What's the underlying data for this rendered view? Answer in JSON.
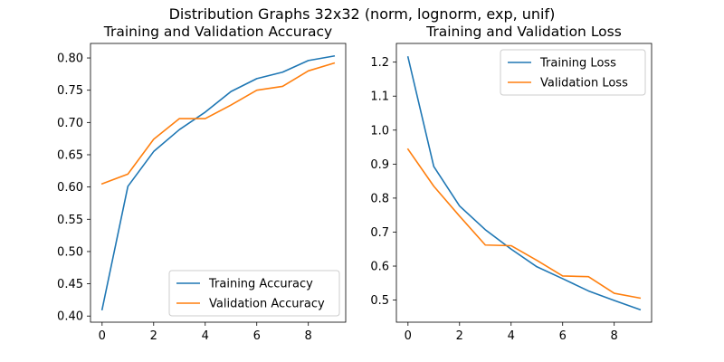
{
  "suptitle": "Distribution Graphs 32x32 (norm, lognorm, exp, unif)",
  "colors": {
    "training": "#1f77b4",
    "validation": "#ff7f0e"
  },
  "chart_data": [
    {
      "type": "line",
      "title": "Training and Validation Accuracy",
      "xlabel": "",
      "ylabel": "",
      "x": [
        0,
        1,
        2,
        3,
        4,
        5,
        6,
        7,
        8,
        9
      ],
      "xlim": [
        -0.45,
        9.45
      ],
      "ylim": [
        0.3905,
        0.8225
      ],
      "xticks": [
        0,
        2,
        4,
        6,
        8
      ],
      "yticks": [
        0.4,
        0.45,
        0.5,
        0.55,
        0.6,
        0.65,
        0.7,
        0.75,
        0.8
      ],
      "ytick_labels": [
        "0.40",
        "0.45",
        "0.50",
        "0.55",
        "0.60",
        "0.65",
        "0.70",
        "0.75",
        "0.80"
      ],
      "legend_position": "lower-right",
      "series": [
        {
          "name": "Training Accuracy",
          "color": "#1f77b4",
          "values": [
            0.41,
            0.601,
            0.655,
            0.689,
            0.716,
            0.748,
            0.768,
            0.778,
            0.796,
            0.803
          ]
        },
        {
          "name": "Validation Accuracy",
          "color": "#ff7f0e",
          "values": [
            0.605,
            0.62,
            0.674,
            0.706,
            0.706,
            0.727,
            0.75,
            0.756,
            0.78,
            0.792
          ]
        }
      ]
    },
    {
      "type": "line",
      "title": "Training and Validation Loss",
      "xlabel": "",
      "ylabel": "",
      "x": [
        0,
        1,
        2,
        3,
        4,
        5,
        6,
        7,
        8,
        9
      ],
      "xlim": [
        -0.45,
        9.45
      ],
      "ylim": [
        0.435,
        1.255
      ],
      "xticks": [
        0,
        2,
        4,
        6,
        8
      ],
      "yticks": [
        0.5,
        0.6,
        0.7,
        0.8,
        0.9,
        1.0,
        1.1,
        1.2
      ],
      "ytick_labels": [
        "0.5",
        "0.6",
        "0.7",
        "0.8",
        "0.9",
        "1.0",
        "1.1",
        "1.2"
      ],
      "legend_position": "upper-right",
      "series": [
        {
          "name": "Training Loss",
          "color": "#1f77b4",
          "values": [
            1.215,
            0.893,
            0.777,
            0.707,
            0.65,
            0.598,
            0.563,
            0.527,
            0.499,
            0.472
          ]
        },
        {
          "name": "Validation Loss",
          "color": "#ff7f0e",
          "values": [
            0.944,
            0.835,
            0.747,
            0.662,
            0.66,
            0.617,
            0.571,
            0.569,
            0.52,
            0.506
          ]
        }
      ]
    }
  ]
}
